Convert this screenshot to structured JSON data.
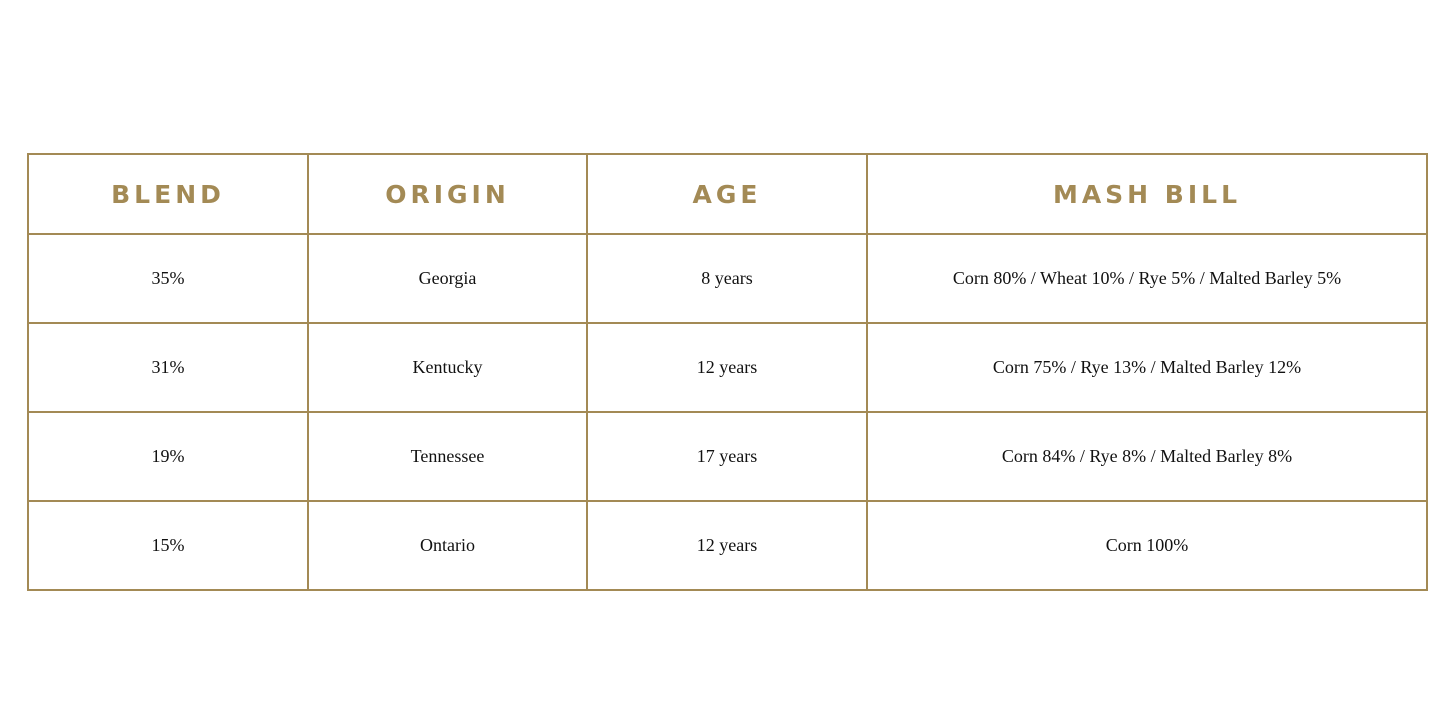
{
  "colors": {
    "accent": "#a38a55",
    "text": "#111111"
  },
  "table": {
    "headers": [
      "BLEND",
      "ORIGIN",
      "AGE",
      "MASH BILL"
    ],
    "rows": [
      [
        "35%",
        "Georgia",
        "8 years",
        "Corn 80% / Wheat 10% / Rye 5% / Malted Barley 5%"
      ],
      [
        "31%",
        "Kentucky",
        "12 years",
        "Corn 75% / Rye 13% / Malted Barley 12%"
      ],
      [
        "19%",
        "Tennessee",
        "17 years",
        "Corn 84% / Rye 8% / Malted Barley 8%"
      ],
      [
        "15%",
        "Ontario",
        "12 years",
        "Corn 100%"
      ]
    ]
  }
}
